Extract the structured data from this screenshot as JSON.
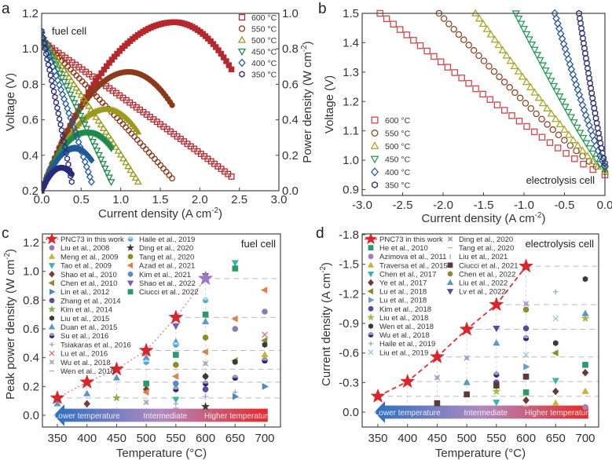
{
  "chart_data": [
    {
      "panel": "a",
      "type": "scatter",
      "annotation": "fuel cell",
      "xlabel": "Current density (A cm-2)",
      "ylabel": "Voltage (V)",
      "ylabel_right": "Power density (W cm-2)",
      "xlim": [
        0.0,
        3.0
      ],
      "ylim": [
        0.2,
        1.2
      ],
      "ylim_right": [
        0.0,
        1.0
      ],
      "xticks": [
        "0.0",
        "0.5",
        "1.0",
        "1.5",
        "2.0",
        "2.5",
        "3.0"
      ],
      "yticks": [
        "0.2",
        "0.4",
        "0.6",
        "0.8",
        "1.0",
        "1.2"
      ],
      "yticks_right": [
        "0.0",
        "0.2",
        "0.4",
        "0.6",
        "0.8",
        "1.0"
      ],
      "legend_position": "top-right",
      "series": [
        {
          "name": "600 °C",
          "color": "#b5282e",
          "marker": "square",
          "ocv": 1.05,
          "imax": 2.4,
          "v_end": 0.28,
          "peak_power": 0.95,
          "peak_at": 1.68
        },
        {
          "name": "550 °C",
          "color": "#8b3a1c",
          "marker": "circle",
          "ocv": 1.06,
          "imax": 1.65,
          "v_end": 0.27,
          "peak_power": 0.67,
          "peak_at": 1.1
        },
        {
          "name": "500 °C",
          "color": "#9a9a1e",
          "marker": "triangle-up",
          "ocv": 1.07,
          "imax": 1.22,
          "v_end": 0.25,
          "peak_power": 0.46,
          "peak_at": 0.82
        },
        {
          "name": "450 °C",
          "color": "#1f8a4c",
          "marker": "triangle-down",
          "ocv": 1.08,
          "imax": 0.88,
          "v_end": 0.25,
          "peak_power": 0.33,
          "peak_at": 0.58
        },
        {
          "name": "400 °C",
          "color": "#1f5a9a",
          "marker": "diamond",
          "ocv": 1.09,
          "imax": 0.63,
          "v_end": 0.25,
          "peak_power": 0.24,
          "peak_at": 0.42
        },
        {
          "name": "350 °C",
          "color": "#2a2a7a",
          "marker": "hexagon",
          "ocv": 1.1,
          "imax": 0.38,
          "v_end": 0.25,
          "peak_power": 0.13,
          "peak_at": 0.25
        }
      ]
    },
    {
      "panel": "b",
      "type": "scatter",
      "annotation": "electrolysis cell",
      "xlabel": "Current density (A cm-2)",
      "ylabel": "Voltage (V)",
      "ylabel_left_clipped": "Power density (W cm-2)",
      "xlim": [
        -3.0,
        0.0
      ],
      "ylim": [
        0.9,
        1.5
      ],
      "xticks": [
        "-3.0",
        "-2.5",
        "-2.0",
        "-1.5",
        "-1.0",
        "-0.5",
        "0.0"
      ],
      "yticks": [
        "0.9",
        "1.0",
        "1.1",
        "1.2",
        "1.3",
        "1.4",
        "1.5"
      ],
      "legend_position": "bottom-left",
      "series": [
        {
          "name": "600 °C",
          "color": "#d0454a",
          "marker": "square",
          "v0": 0.95,
          "i_at_1_5": -2.78
        },
        {
          "name": "550 °C",
          "color": "#8b4a2a",
          "marker": "circle",
          "v0": 0.96,
          "i_at_1_5": -2.05
        },
        {
          "name": "500 °C",
          "color": "#a7a82a",
          "marker": "triangle-up",
          "v0": 0.96,
          "i_at_1_5": -1.6
        },
        {
          "name": "450 °C",
          "color": "#2a9a5a",
          "marker": "triangle-down",
          "v0": 0.97,
          "i_at_1_5": -1.1
        },
        {
          "name": "400 °C",
          "color": "#2a5aa0",
          "marker": "diamond",
          "v0": 0.98,
          "i_at_1_5": -0.62
        },
        {
          "name": "350 °C",
          "color": "#2a2a78",
          "marker": "hexagon",
          "v0": 0.99,
          "i_at_1_5": -0.32
        }
      ]
    },
    {
      "panel": "c",
      "type": "scatter",
      "annotation": "fuel cell",
      "xlabel": "Temperature (°C)",
      "ylabel": "Peak power density (W cm-2)",
      "xlim": [
        330,
        720
      ],
      "ylim": [
        -0.08,
        1.25
      ],
      "xticks": [
        "350",
        "400",
        "450",
        "500",
        "550",
        "600",
        "650",
        "700"
      ],
      "yticks": [
        "0.0",
        "0.2",
        "0.4",
        "0.6",
        "0.8",
        "1.0",
        "1.2"
      ],
      "legend_position": "top-left",
      "arrow_labels": [
        "Lower temperature",
        "Intermediate",
        "Higher temperature"
      ],
      "this_work": {
        "name": "PNC73 in this work",
        "color": "#d9262c",
        "x": [
          350,
          400,
          450,
          500,
          550,
          600
        ],
        "y": [
          0.12,
          0.23,
          0.32,
          0.45,
          0.68,
          0.95
        ]
      },
      "series": [
        {
          "name": "Liu et al., 2008",
          "color": "#8e7bb5",
          "marker": "circle",
          "points": [
            [
              650,
              0.6
            ],
            [
              700,
              0.72
            ]
          ]
        },
        {
          "name": "Meng et al., 2009",
          "color": "#c9b13a",
          "marker": "triangle-up",
          "points": [
            [
              700,
              0.42
            ]
          ]
        },
        {
          "name": "Tao et al., 2009",
          "color": "#3bb3b0",
          "marker": "triangle-down",
          "points": [
            [
              550,
              0.11
            ],
            [
              650,
              1.06
            ]
          ]
        },
        {
          "name": "Shao et al., 2010",
          "color": "#7a3e3a",
          "marker": "diamond",
          "points": [
            [
              400,
              0.08
            ],
            [
              500,
              0.18
            ],
            [
              600,
              0.27
            ]
          ]
        },
        {
          "name": "Chen et al., 2010",
          "color": "#8c8c2a",
          "marker": "triangle-left",
          "points": [
            [
              650,
              0.38
            ],
            [
              700,
              0.52
            ]
          ]
        },
        {
          "name": "Lin et al., 2012",
          "color": "#4a8ac0",
          "marker": "triangle-right",
          "points": [
            [
              650,
              0.13
            ],
            [
              700,
              0.2
            ]
          ]
        },
        {
          "name": "Zhang et al., 2014",
          "color": "#5a4a9a",
          "marker": "circle",
          "points": [
            [
              600,
              0.18
            ],
            [
              700,
              0.38
            ]
          ]
        },
        {
          "name": "Kim et al., 2014",
          "color": "#8ab04a",
          "marker": "star",
          "points": [
            [
              450,
              0.12
            ]
          ]
        },
        {
          "name": "Liu et al., 2015",
          "color": "#3a3a3a",
          "marker": "hexagon",
          "points": [
            [
              600,
              0.27
            ],
            [
              650,
              0.37
            ],
            [
              700,
              0.49
            ]
          ]
        },
        {
          "name": "Duan et al., 2015",
          "color": "#5a9ac0",
          "marker": "triangle-up",
          "points": [
            [
              350,
              0.08
            ],
            [
              400,
              0.15
            ],
            [
              450,
              0.26
            ],
            [
              500,
              0.4
            ],
            [
              550,
              0.51
            ],
            [
              600,
              0.65
            ]
          ]
        },
        {
          "name": "Su et al., 2016",
          "color": "#2a2a7a",
          "marker": "circle-half",
          "points": [
            [
              550,
              0.18
            ],
            [
              600,
              0.22
            ],
            [
              650,
              0.26
            ],
            [
              700,
              0.38
            ]
          ]
        },
        {
          "name": "Tsiakaras et al., 2016",
          "color": "#9a9ac8",
          "marker": "plus",
          "points": [
            [
              550,
              0.08
            ],
            [
              600,
              0.13
            ],
            [
              650,
              0.16
            ]
          ]
        },
        {
          "name": "Lu et al., 2016",
          "color": "#d26a7a",
          "marker": "x",
          "points": [
            [
              500,
              0.43
            ],
            [
              700,
              0.56
            ]
          ]
        },
        {
          "name": "Wu et al., 2018",
          "color": "#a0a0b0",
          "marker": "square-x",
          "points": [
            [
              500,
              0.09
            ],
            [
              600,
              0.36
            ]
          ]
        },
        {
          "name": "Wen et al., 2018",
          "color": "#c8a0a0",
          "marker": "dash",
          "points": [
            [
              550,
              0.05
            ]
          ]
        },
        {
          "name": "Haile et al., 2019",
          "color": "#4aa8d8",
          "marker": "circle-half",
          "points": [
            [
              500,
              0.37
            ],
            [
              550,
              0.49
            ],
            [
              600,
              0.8
            ]
          ]
        },
        {
          "name": "Ding et al., 2020",
          "color": "#3a3a3a",
          "marker": "star",
          "points": [
            [
              600,
              0.06
            ]
          ]
        },
        {
          "name": "Tang et al., 2020",
          "color": "#8c8c2a",
          "marker": "circle",
          "points": [
            [
              550,
              0.35
            ],
            [
              600,
              0.54
            ]
          ]
        },
        {
          "name": "Azad et al., 2021",
          "color": "#e0804a",
          "marker": "triangle-left",
          "points": [
            [
              500,
              0.16
            ],
            [
              550,
              0.27
            ],
            [
              600,
              0.44
            ],
            [
              650,
              0.67
            ],
            [
              700,
              0.87
            ]
          ]
        },
        {
          "name": "Kim et al., 2021",
          "color": "#5a8ac8",
          "marker": "circle",
          "points": [
            [
              550,
              0.22
            ]
          ]
        },
        {
          "name": "Shao et al., 2022",
          "color": "#7a5ab0",
          "marker": "triangle-down",
          "points": [
            [
              550,
              0.62
            ],
            [
              600,
              0.97
            ]
          ]
        },
        {
          "name": "Ciucci et al., 2022",
          "color": "#2a9a6a",
          "marker": "square",
          "points": [
            [
              500,
              0.22
            ],
            [
              550,
              0.42
            ],
            [
              600,
              0.7
            ],
            [
              650,
              1.02
            ]
          ]
        }
      ]
    },
    {
      "panel": "d",
      "type": "scatter",
      "annotation": "electrolysis cell",
      "xlabel": "Temperature (°C)",
      "ylabel": "Current density (A cm-2)",
      "xlim": [
        330,
        720
      ],
      "ylim": [
        0.18,
        -1.8
      ],
      "xticks": [
        "350",
        "400",
        "450",
        "500",
        "550",
        "600",
        "650",
        "700"
      ],
      "yticks": [
        "0.0",
        "-0.3",
        "-0.6",
        "-0.9",
        "-1.2",
        "-1.5",
        "-1.8"
      ],
      "legend_position": "top-left",
      "arrow_labels": [
        "Lower temperature",
        "Intermediate",
        "Higher temperature"
      ],
      "this_work": {
        "name": "PNC73 in this work",
        "color": "#d9262c",
        "x": [
          350,
          400,
          450,
          500,
          550,
          600
        ],
        "y": [
          -0.16,
          -0.31,
          -0.56,
          -0.84,
          -1.09,
          -1.48
        ]
      },
      "series": [
        {
          "name": "He et al., 2010",
          "color": "#2a9a6a",
          "marker": "square",
          "points": [
            [
              600,
              -0.2
            ],
            [
              700,
              -0.48
            ]
          ]
        },
        {
          "name": "Azimova et al., 2011",
          "color": "#b07ab0",
          "marker": "circle",
          "points": [
            [
              700,
              -0.05
            ]
          ]
        },
        {
          "name": "Traversa et al., 2015",
          "color": "#c9b13a",
          "marker": "triangle-up",
          "points": [
            [
              650,
              -0.09
            ],
            [
              700,
              -0.21
            ]
          ]
        },
        {
          "name": "Chen et al., 2017",
          "color": "#3bb3b0",
          "marker": "triangle-down",
          "points": [
            [
              550,
              -0.1
            ],
            [
              650,
              -0.32
            ]
          ]
        },
        {
          "name": "Ye et al., 2017",
          "color": "#6a3a3a",
          "marker": "diamond",
          "points": [
            [
              600,
              -0.12
            ],
            [
              650,
              -0.21
            ],
            [
              700,
              -0.4
            ]
          ]
        },
        {
          "name": "Lu et al., 2018 (a)",
          "color": "#8c8c2a",
          "marker": "triangle-left",
          "points": [
            [
              650,
              -0.6
            ]
          ]
        },
        {
          "name": "Lu et al., 2018 (b)",
          "color": "#6a9ad0",
          "marker": "triangle-right",
          "points": [
            [
              600,
              -0.46
            ]
          ]
        },
        {
          "name": "Kim et al., 2018",
          "color": "#5a4a9a",
          "marker": "circle",
          "points": [
            [
              550,
              -0.3
            ],
            [
              600,
              -0.85
            ]
          ]
        },
        {
          "name": "Liu et al., 2018",
          "color": "#a8b84a",
          "marker": "star",
          "points": [
            [
              550,
              -0.21
            ],
            [
              700,
              -0.95
            ]
          ]
        },
        {
          "name": "Wen et al., 2018",
          "color": "#3a3a3a",
          "marker": "hexagon",
          "points": [
            [
              650,
              -0.7
            ],
            [
              700,
              -1.35
            ]
          ]
        },
        {
          "name": "Wu et al., 2018",
          "color": "#2a2a7a",
          "marker": "circle-half",
          "points": [
            [
              550,
              -0.38
            ],
            [
              600,
              -0.75
            ]
          ]
        },
        {
          "name": "Haile et al., 2019",
          "color": "#8ab09a",
          "marker": "plus",
          "points": [
            [
              650,
              -1.22
            ]
          ]
        },
        {
          "name": "Liu et al., 2019",
          "color": "#9ac0d0",
          "marker": "x",
          "points": [
            [
              600,
              -0.58
            ],
            [
              650,
              -0.95
            ]
          ]
        },
        {
          "name": "Ding et al., 2020",
          "color": "#a090c0",
          "marker": "square-x",
          "points": [
            [
              450,
              -0.35
            ],
            [
              500,
              -0.55
            ],
            [
              600,
              -1.1
            ]
          ]
        },
        {
          "name": "Tang et al., 2020",
          "color": "#c8b090",
          "marker": "dash",
          "points": [
            [
              600,
              -0.06
            ]
          ]
        },
        {
          "name": "Liu et al., 2021",
          "color": "#a0a8b0",
          "marker": "vbar",
          "points": [
            [
              550,
              -0.4
            ]
          ]
        },
        {
          "name": "Ciucci et al., 2021",
          "color": "#5a3a3a",
          "marker": "square",
          "points": [
            [
              450,
              -0.09
            ],
            [
              500,
              -0.18
            ],
            [
              550,
              -0.27
            ],
            [
              600,
              -0.36
            ]
          ]
        },
        {
          "name": "Chen et al., 2022",
          "color": "#8c8c2a",
          "marker": "circle",
          "points": [
            [
              600,
              -1.04
            ]
          ]
        },
        {
          "name": "Liu et al., 2022",
          "color": "#5a9ac0",
          "marker": "triangle-up",
          "points": [
            [
              500,
              -0.3
            ],
            [
              550,
              -0.7
            ],
            [
              700,
              -1.0
            ]
          ]
        },
        {
          "name": "Lv et al., 2022",
          "color": "#5a4a9a",
          "marker": "triangle-down",
          "points": [
            [
              550,
              -0.85
            ]
          ]
        }
      ]
    }
  ]
}
